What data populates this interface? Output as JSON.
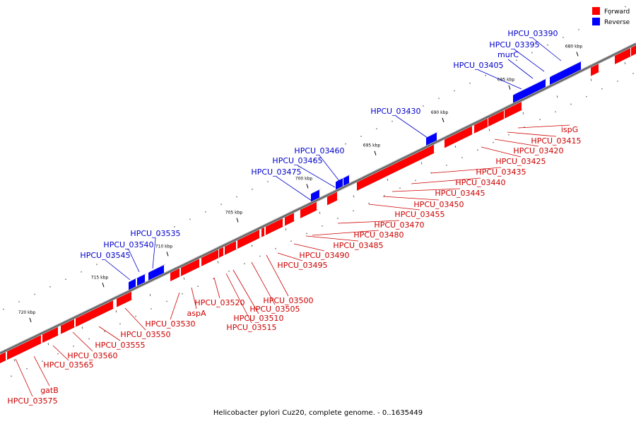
{
  "caption": "Helicobacter pylori Cuz20, complete genome. - 0..1635449",
  "legend": {
    "forward": {
      "label": "Forward",
      "color": "#ff0000"
    },
    "reverse": {
      "label": "Reverse",
      "color": "#0000ff"
    }
  },
  "scale_labels": [
    "720 kbp",
    "715 kbp",
    "710 kbp",
    "705 kbp",
    "700 kbp",
    "695 kbp",
    "690 kbp",
    "685 kbp",
    "680 kbp"
  ],
  "genes_forward": [
    "ispG",
    "HPCU_03415",
    "HPCU_03420",
    "HPCU_03425",
    "HPCU_03435",
    "HPCU_03440",
    "HPCU_03445",
    "HPCU_03450",
    "HPCU_03455",
    "HPCU_03470",
    "HPCU_03480",
    "HPCU_03485",
    "HPCU_03490",
    "HPCU_03495",
    "HPCU_03500",
    "HPCU_03505",
    "HPCU_03510",
    "HPCU_03515",
    "HPCU_03520",
    "aspA",
    "HPCU_03530",
    "HPCU_03550",
    "HPCU_03555",
    "HPCU_03560",
    "HPCU_03565",
    "gatB",
    "HPCU_03575"
  ],
  "genes_reverse": [
    "HPCU_03390",
    "HPCU_03395",
    "murC",
    "HPCU_03405",
    "HPCU_03430",
    "HPCU_03460",
    "HPCU_03465",
    "HPCU_03475",
    "HPCU_03535",
    "HPCU_03540",
    "HPCU_03545"
  ]
}
